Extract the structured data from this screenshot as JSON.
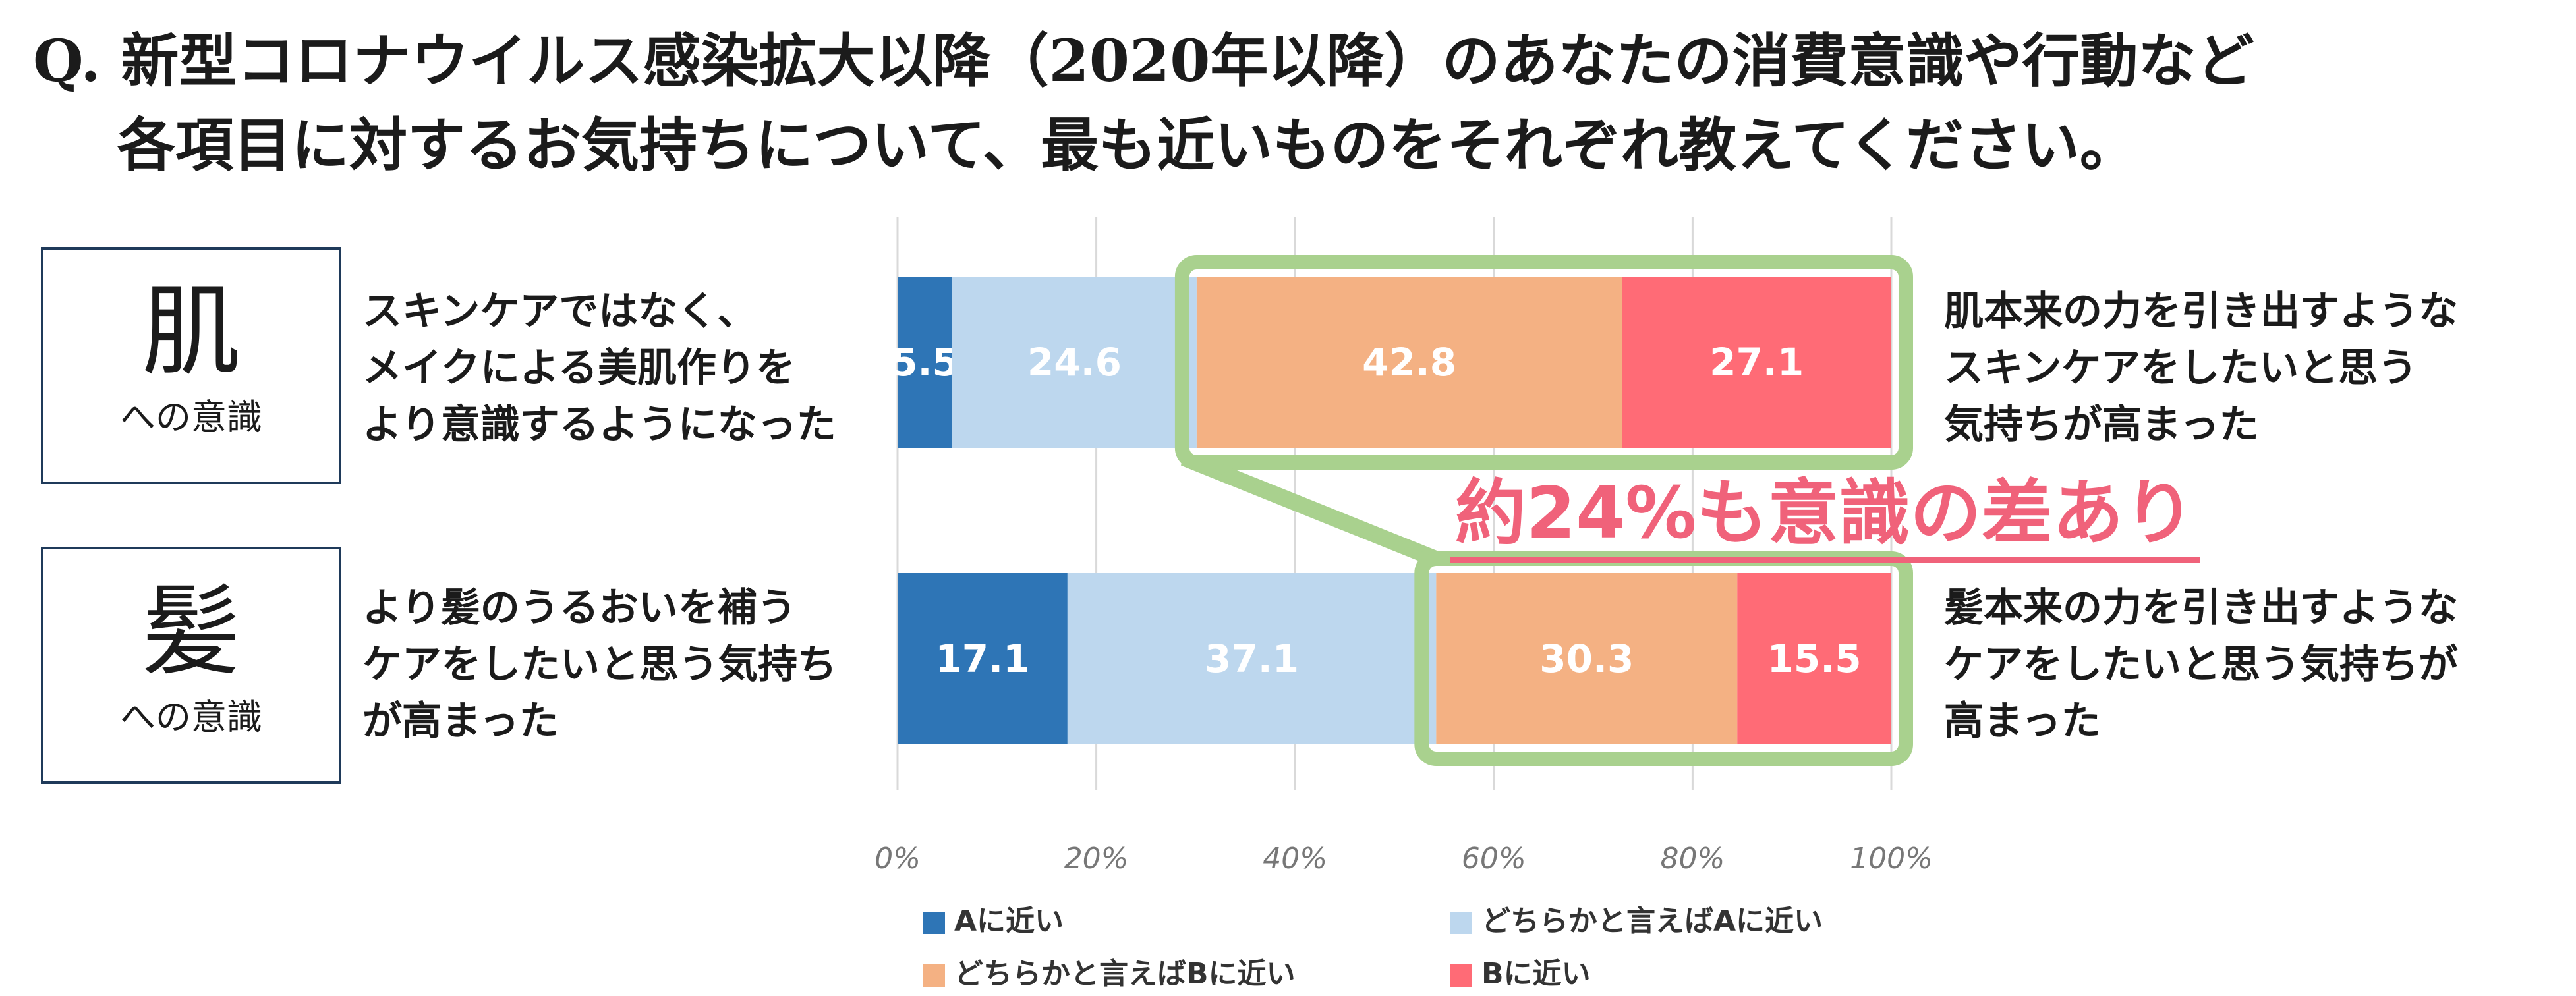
{
  "question": {
    "line1": "Q. 新型コロナウイルス感染拡大以降（2020年以降）のあなたの消費意識や行動など",
    "line2": "各項目に対するお気持ちについて、最も近いものをそれぞれ教えてください。"
  },
  "rows": [
    {
      "category_big": "肌",
      "category_small": "への意識",
      "statement_a": [
        "スキンケアではなく、",
        "メイクによる美肌作りを",
        "より意識するようになった"
      ],
      "statement_b": [
        "肌本来の力を引き出すような",
        "スキンケアをしたいと思う",
        "気持ちが高まった"
      ]
    },
    {
      "category_big": "髪",
      "category_small": "への意識",
      "statement_a": [
        "より髪のうるおいを補う",
        "ケアをしたいと思う気持ち",
        "が高まった"
      ],
      "statement_b": [
        "髪本来の力を引き出すような",
        "ケアをしたいと思う気持ちが",
        "高まった"
      ]
    }
  ],
  "callout": "約24%も意識の差あり",
  "colors": {
    "a_close": "#2e75b6",
    "lean_a": "#bdd7ee",
    "lean_b": "#f4b183",
    "b_close": "#ff6b76",
    "highlight": "#a9d18e",
    "callout": "#f0627a",
    "grid": "#d9d9d9"
  },
  "chart_data": {
    "type": "bar",
    "orientation": "horizontal",
    "stacked": true,
    "categories": [
      "肌への意識",
      "髪への意識"
    ],
    "series": [
      {
        "name": "Aに近い",
        "values": [
          5.5,
          17.1
        ]
      },
      {
        "name": "どちらかと言えばAに近い",
        "values": [
          24.6,
          37.1
        ]
      },
      {
        "name": "どちらかと言えばBに近い",
        "values": [
          42.8,
          30.3
        ]
      },
      {
        "name": "Bに近い",
        "values": [
          27.1,
          15.5
        ]
      }
    ],
    "xticks": [
      "0%",
      "20%",
      "40%",
      "60%",
      "80%",
      "100%"
    ],
    "xlim": [
      0,
      100
    ],
    "grid": true,
    "legend_position": "bottom"
  }
}
